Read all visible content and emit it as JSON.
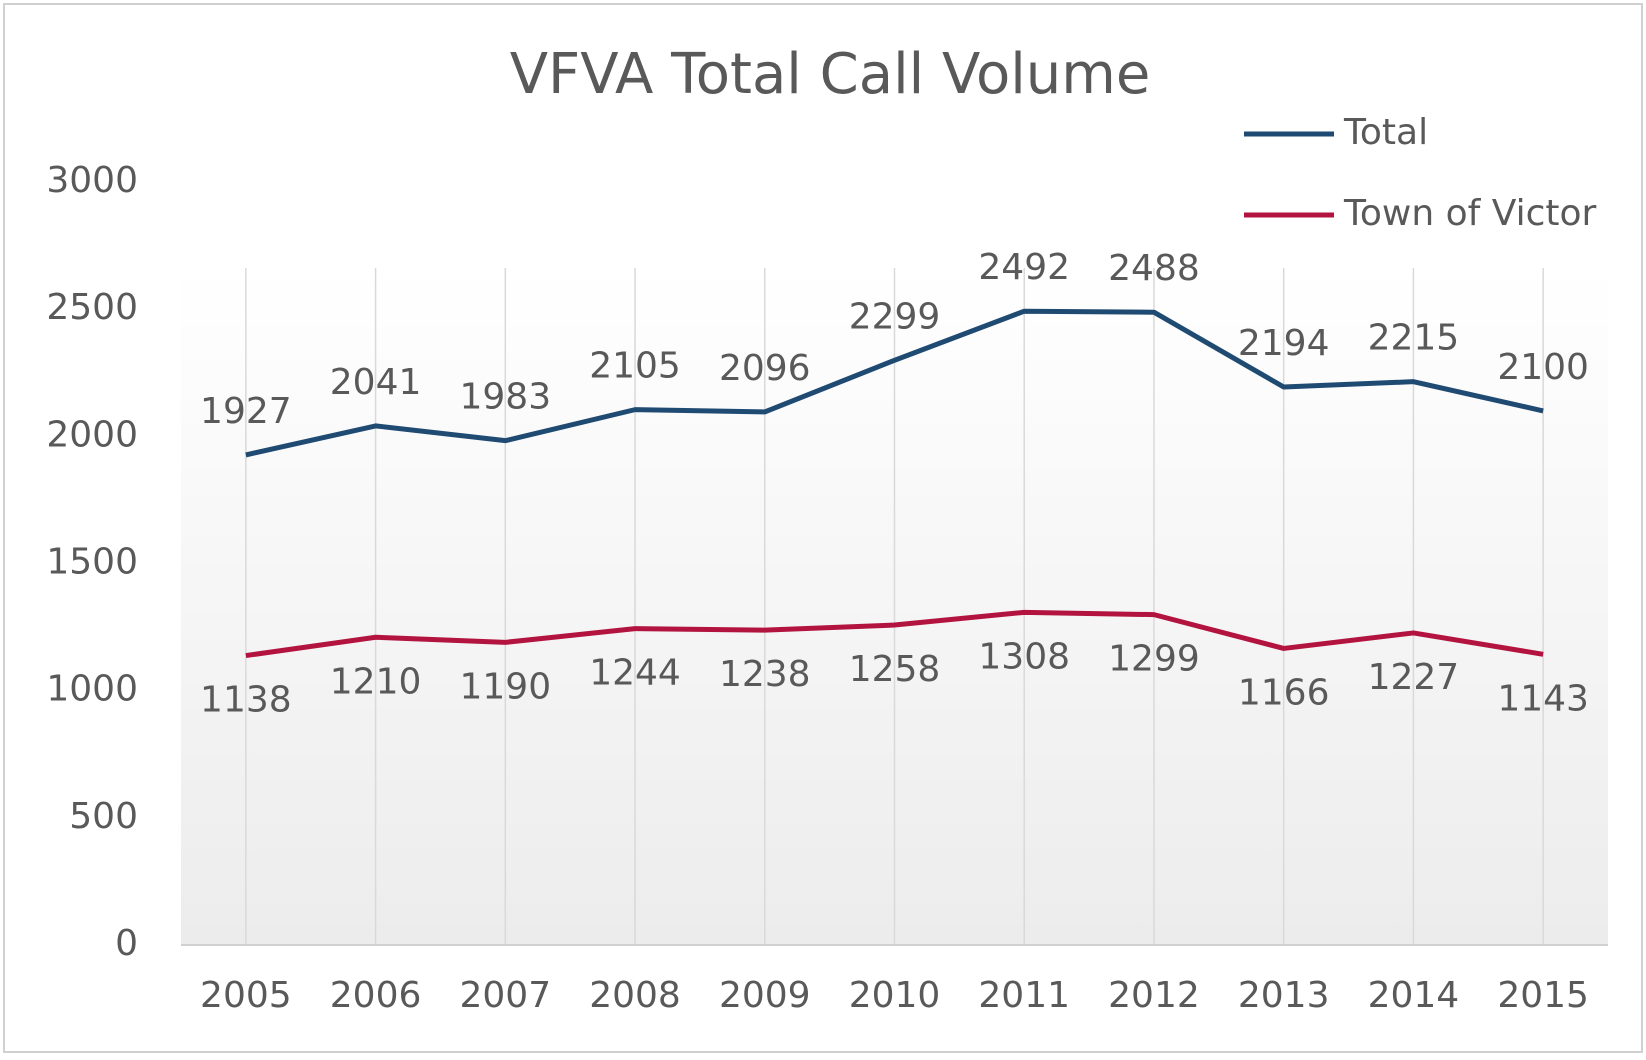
{
  "chart_data": {
    "type": "line",
    "title": "VFVA Total Call Volume",
    "categories": [
      "2005",
      "2006",
      "2007",
      "2008",
      "2009",
      "2010",
      "2011",
      "2012",
      "2013",
      "2014",
      "2015"
    ],
    "series": [
      {
        "name": "Total",
        "color": "#1f4a72",
        "values": [
          1927,
          2041,
          1983,
          2105,
          2096,
          2299,
          2492,
          2488,
          2194,
          2215,
          2100
        ]
      },
      {
        "name": "Town of Victor",
        "color": "#b2143f",
        "values": [
          1138,
          1210,
          1190,
          1244,
          1238,
          1258,
          1308,
          1299,
          1166,
          1227,
          1143
        ]
      }
    ],
    "ylim": [
      0,
      3000
    ],
    "yticks": [
      0,
      500,
      1000,
      1500,
      2000,
      2500,
      3000
    ],
    "grid": false,
    "legend": "top-right"
  }
}
